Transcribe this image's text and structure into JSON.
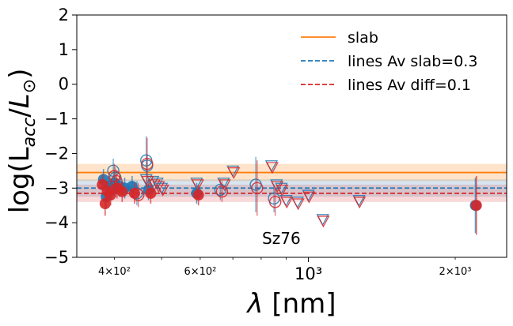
{
  "chart_data": {
    "type": "scatter",
    "title": "",
    "xlabel": "λ [nm]",
    "ylabel": "log(L_acc/L_⊙)",
    "xscale": "log",
    "xlim": [
      335,
      2550
    ],
    "ylim": [
      -5,
      2
    ],
    "grid": false,
    "legend_position": "top-right",
    "x_ticks": [
      {
        "value": 400,
        "label": "4×10²",
        "major": false
      },
      {
        "value": 600,
        "label": "6×10²",
        "major": false
      },
      {
        "value": 1000,
        "label": "10³",
        "major": true
      },
      {
        "value": 2000,
        "label": "2×10³",
        "major": false
      }
    ],
    "y_ticks": [
      {
        "value": 2,
        "label": "2"
      },
      {
        "value": 1,
        "label": "1"
      },
      {
        "value": 0,
        "label": "0"
      },
      {
        "value": -1,
        "label": "−1"
      },
      {
        "value": -2,
        "label": "−2"
      },
      {
        "value": -3,
        "label": "−3"
      },
      {
        "value": -4,
        "label": "−4"
      },
      {
        "value": -5,
        "label": "−5"
      }
    ],
    "reference_lines": [
      {
        "name": "slab",
        "y": -2.55,
        "band": [
          -2.8,
          -2.3
        ],
        "color": "#ff7f0e",
        "style": "solid",
        "band_color": "rgba(255,127,14,0.22)"
      },
      {
        "name": "lines Av slab=0.3",
        "y": -3.0,
        "band": [
          -3.25,
          -2.75
        ],
        "color": "#1f77b4",
        "style": "dashed",
        "band_color": "rgba(31,119,180,0.18)"
      },
      {
        "name": "lines Av diff=0.1",
        "y": -3.15,
        "band": [
          -3.4,
          -2.9
        ],
        "color": "#d62728",
        "style": "dashed",
        "band_color": "rgba(214,39,40,0.18)"
      }
    ],
    "series": [
      {
        "color": "#1f77b4",
        "filled_points": [
          {
            "x": 380,
            "y": -2.75,
            "err": 0.3
          },
          {
            "x": 385,
            "y": -3.25,
            "err": 0.35
          },
          {
            "x": 390,
            "y": -2.95,
            "err": 0.3
          },
          {
            "x": 395,
            "y": -3.05,
            "err": 0.3
          },
          {
            "x": 400,
            "y": -2.85,
            "err": 0.35
          },
          {
            "x": 410,
            "y": -2.95,
            "err": 0.3
          },
          {
            "x": 420,
            "y": -3.0,
            "err": 0.3
          },
          {
            "x": 435,
            "y": -2.95,
            "err": 0.3
          },
          {
            "x": 470,
            "y": -3.05,
            "err": 0.3
          },
          {
            "x": 590,
            "y": -3.15,
            "err": 0.3
          },
          {
            "x": 2200,
            "y": -3.5,
            "err": 0.8
          }
        ],
        "open_points": [
          {
            "x": 398,
            "y": -2.5,
            "err": 0.35
          },
          {
            "x": 402,
            "y": -2.7,
            "err": 0.3
          },
          {
            "x": 445,
            "y": -3.15,
            "err": 0.35
          },
          {
            "x": 465,
            "y": -2.2,
            "err": 0.7
          },
          {
            "x": 467,
            "y": -2.35,
            "err": 0.3
          },
          {
            "x": 660,
            "y": -3.05,
            "err": 0.3
          },
          {
            "x": 780,
            "y": -2.9,
            "err": 0.8
          },
          {
            "x": 850,
            "y": -3.3,
            "err": 0.4
          }
        ],
        "upper_limits": [
          {
            "x": 465,
            "y": -2.75
          },
          {
            "x": 480,
            "y": -2.8
          },
          {
            "x": 490,
            "y": -2.85
          },
          {
            "x": 500,
            "y": -3.0
          },
          {
            "x": 590,
            "y": -2.85
          },
          {
            "x": 670,
            "y": -2.85
          },
          {
            "x": 700,
            "y": -2.5
          },
          {
            "x": 840,
            "y": -2.35
          },
          {
            "x": 860,
            "y": -2.9
          },
          {
            "x": 880,
            "y": -3.0
          },
          {
            "x": 900,
            "y": -3.35
          },
          {
            "x": 950,
            "y": -3.4
          },
          {
            "x": 1000,
            "y": -3.2
          },
          {
            "x": 1070,
            "y": -3.9
          },
          {
            "x": 1270,
            "y": -3.35
          }
        ]
      },
      {
        "color": "#d62728",
        "filled_points": [
          {
            "x": 378,
            "y": -2.9,
            "err": 0.3
          },
          {
            "x": 383,
            "y": -3.45,
            "err": 0.35
          },
          {
            "x": 388,
            "y": -3.1,
            "err": 0.3
          },
          {
            "x": 393,
            "y": -3.2,
            "err": 0.3
          },
          {
            "x": 405,
            "y": -3.0,
            "err": 0.3
          },
          {
            "x": 415,
            "y": -3.1,
            "err": 0.3
          },
          {
            "x": 440,
            "y": -3.15,
            "err": 0.3
          },
          {
            "x": 475,
            "y": -3.15,
            "err": 0.3
          },
          {
            "x": 595,
            "y": -3.2,
            "err": 0.3
          },
          {
            "x": 2210,
            "y": -3.5,
            "err": 0.85
          }
        ],
        "open_points": [
          {
            "x": 400,
            "y": -2.65,
            "err": 0.35
          },
          {
            "x": 404,
            "y": -2.8,
            "err": 0.3
          },
          {
            "x": 448,
            "y": -3.2,
            "err": 0.35
          },
          {
            "x": 467,
            "y": -2.3,
            "err": 0.75
          },
          {
            "x": 665,
            "y": -3.1,
            "err": 0.3
          },
          {
            "x": 785,
            "y": -3.0,
            "err": 0.8
          },
          {
            "x": 855,
            "y": -3.4,
            "err": 0.4
          }
        ],
        "upper_limits": [
          {
            "x": 468,
            "y": -2.8
          },
          {
            "x": 483,
            "y": -2.9
          },
          {
            "x": 493,
            "y": -2.95
          },
          {
            "x": 503,
            "y": -3.05
          },
          {
            "x": 593,
            "y": -2.9
          },
          {
            "x": 673,
            "y": -2.9
          },
          {
            "x": 703,
            "y": -2.55
          },
          {
            "x": 843,
            "y": -2.4
          },
          {
            "x": 863,
            "y": -2.95
          },
          {
            "x": 883,
            "y": -3.05
          },
          {
            "x": 903,
            "y": -3.4
          },
          {
            "x": 953,
            "y": -3.45
          },
          {
            "x": 1003,
            "y": -3.25
          },
          {
            "x": 1073,
            "y": -3.95
          },
          {
            "x": 1273,
            "y": -3.4
          }
        ]
      }
    ],
    "annotation": {
      "text": "Sz76",
      "x": 880,
      "y": -4.45
    }
  }
}
